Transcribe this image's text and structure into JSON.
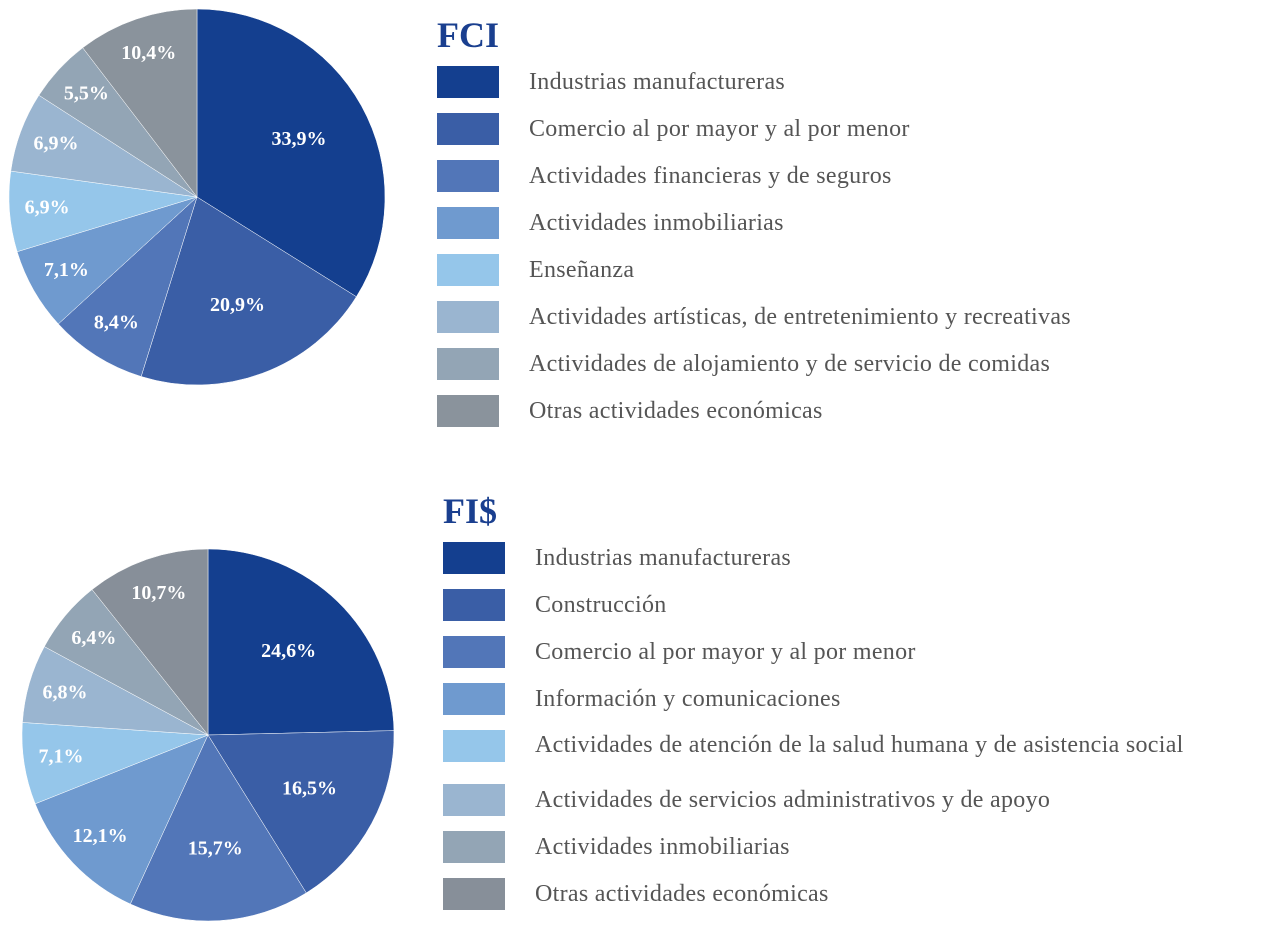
{
  "chart_data": [
    {
      "type": "pie",
      "title": "FCI",
      "categories": [
        "Industrias manufactureras",
        "Comercio al por mayor y al por menor",
        "Actividades financieras y de seguros",
        "Actividades inmobiliarias",
        "Enseñanza",
        "Actividades artísticas, de entretenimiento y recreativas",
        "Actividades de alojamiento y de servicio de comidas",
        "Otras actividades económicas"
      ],
      "values": [
        33.9,
        20.9,
        8.4,
        7.1,
        6.9,
        6.9,
        5.5,
        10.4
      ],
      "value_labels": [
        "33,9%",
        "20,9%",
        "8,4%",
        "7,1%",
        "6,9%",
        "6,9%",
        "5,5%",
        "10,4%"
      ],
      "colors": [
        "#143f8f",
        "#3a5ea6",
        "#5276b8",
        "#6f9acf",
        "#95c6ea",
        "#9ab5d0",
        "#93a5b5",
        "#8a939c"
      ]
    },
    {
      "type": "pie",
      "title": "FI$",
      "categories": [
        "Industrias manufactureras",
        "Construcción",
        "Comercio al por mayor y al por menor",
        "Información y comunicaciones",
        "Actividades de atención de la salud humana y de asistencia social",
        "Actividades de servicios administrativos y de apoyo",
        "Actividades inmobiliarias",
        "Otras actividades económicas"
      ],
      "values": [
        24.6,
        16.5,
        15.7,
        12.1,
        7.1,
        6.8,
        6.4,
        10.7
      ],
      "value_labels": [
        "24,6%",
        "16,5%",
        "15,7%",
        "12,1%",
        "7,1%",
        "6,8%",
        "6,4%",
        "10,7%"
      ],
      "colors": [
        "#143f8f",
        "#3a5ea6",
        "#5276b8",
        "#6f9acf",
        "#95c6ea",
        "#9ab5d0",
        "#93a5b5",
        "#878f99"
      ]
    }
  ]
}
